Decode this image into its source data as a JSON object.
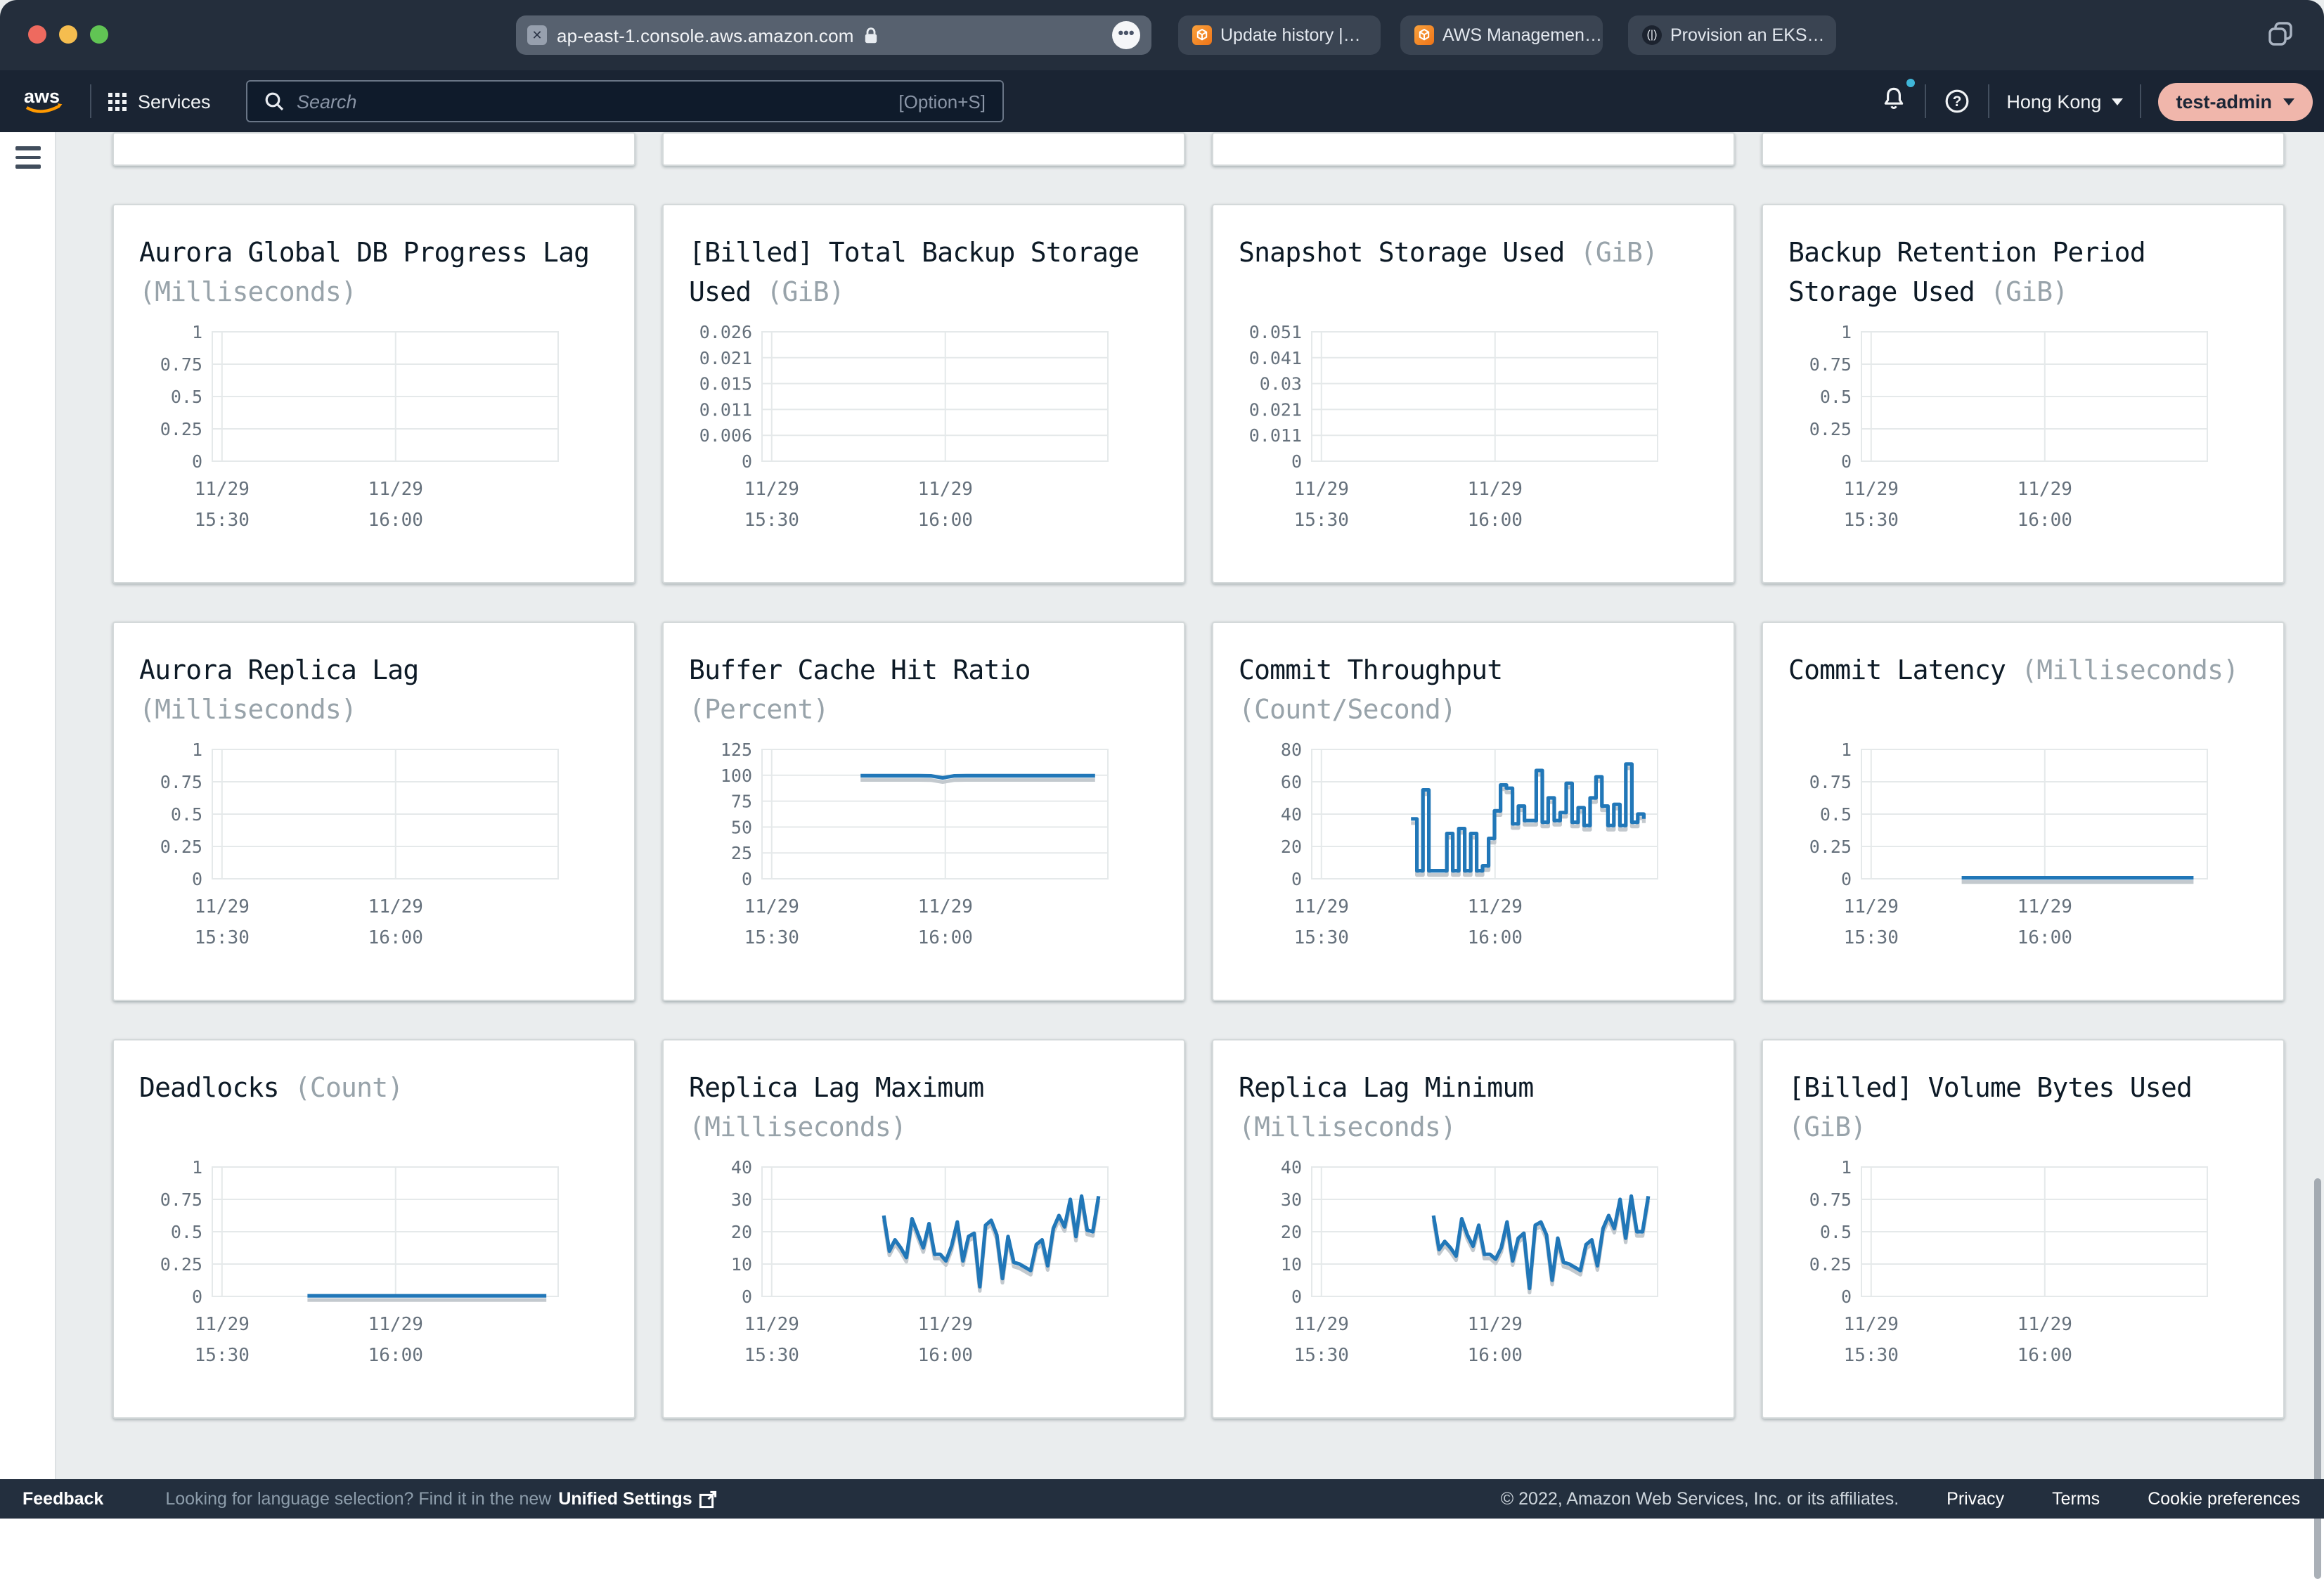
{
  "browser": {
    "url": "ap-east-1.console.aws.amazon.com",
    "tabs": [
      "Update history |…",
      "AWS Managemen…",
      "Provision an EKS…"
    ]
  },
  "navbar": {
    "logo": "aws",
    "services": "Services",
    "search_placeholder": "Search",
    "search_shortcut": "[Option+S]",
    "region": "Hong Kong",
    "account": "test-admin"
  },
  "footer": {
    "feedback": "Feedback",
    "language_prompt": "Looking for language selection? Find it in the new",
    "unified_settings": "Unified Settings",
    "copyright": "© 2022, Amazon Web Services, Inc. or its affiliates.",
    "links": [
      "Privacy",
      "Terms",
      "Cookie preferences"
    ]
  },
  "chart_layout": {
    "grid_x": [
      0.028,
      0.53
    ],
    "line_color": "#2177b8",
    "grid_color": "#e5e9ea"
  },
  "charts": [
    {
      "type": "line",
      "title": "Aurora Global DB Progress Lag",
      "unit": "(Milliseconds)",
      "y_ticks": [
        "1",
        "0.75",
        "0.5",
        "0.25",
        "0"
      ],
      "ylim": 1,
      "x_ticks": [
        [
          "11/29",
          "15:30"
        ],
        [
          "11/29",
          "16:00"
        ]
      ],
      "series": null
    },
    {
      "type": "line",
      "title": "[Billed] Total Backup Storage Used",
      "unit": "(GiB)",
      "y_ticks": [
        "0.026",
        "0.021",
        "0.015",
        "0.011",
        "0.006",
        "0"
      ],
      "ylim": 0.026,
      "x_ticks": [
        [
          "11/29",
          "15:30"
        ],
        [
          "11/29",
          "16:00"
        ]
      ],
      "series": null
    },
    {
      "type": "line",
      "title": "Snapshot Storage Used",
      "unit": "(GiB)",
      "y_ticks": [
        "0.051",
        "0.041",
        "0.03",
        "0.021",
        "0.011",
        "0"
      ],
      "ylim": 0.051,
      "x_ticks": [
        [
          "11/29",
          "15:30"
        ],
        [
          "11/29",
          "16:00"
        ]
      ],
      "series": null
    },
    {
      "type": "line",
      "title": "Backup Retention Period Storage Used",
      "unit": "(GiB)",
      "y_ticks": [
        "1",
        "0.75",
        "0.5",
        "0.25",
        "0"
      ],
      "ylim": 1,
      "x_ticks": [
        [
          "11/29",
          "15:30"
        ],
        [
          "11/29",
          "16:00"
        ]
      ],
      "series": null
    },
    {
      "type": "line",
      "title": "Aurora Replica Lag",
      "unit": "(Milliseconds)",
      "y_ticks": [
        "1",
        "0.75",
        "0.5",
        "0.25",
        "0"
      ],
      "ylim": 1,
      "x_ticks": [
        [
          "11/29",
          "15:30"
        ],
        [
          "11/29",
          "16:00"
        ]
      ],
      "series": null
    },
    {
      "type": "line",
      "title": "Buffer Cache Hit Ratio",
      "unit": "(Percent)",
      "y_ticks": [
        "125",
        "100",
        "75",
        "50",
        "25",
        "0"
      ],
      "ylim": 125,
      "x_ticks": [
        [
          "11/29",
          "15:30"
        ],
        [
          "11/29",
          "16:00"
        ]
      ],
      "series": {
        "type": "line",
        "x0": 0.285,
        "x1": 0.963,
        "values": [
          99.6,
          99.6,
          99.6,
          99.6,
          99.6,
          99.6,
          99.5,
          97.6,
          99.4,
          99.6,
          99.6,
          99.6,
          99.6,
          99.6,
          99.6,
          99.6,
          99.6,
          99.6,
          99.6,
          99.6,
          99.6
        ]
      }
    },
    {
      "type": "step",
      "title": "Commit Throughput",
      "unit": "(Count/Second)",
      "y_ticks": [
        "80",
        "60",
        "40",
        "20",
        "0"
      ],
      "ylim": 80,
      "x_ticks": [
        [
          "11/29",
          "15:30"
        ],
        [
          "11/29",
          "16:00"
        ]
      ],
      "series": {
        "type": "step",
        "x0": 0.287,
        "x1": 0.96,
        "values": [
          37,
          5,
          55,
          5,
          5,
          5,
          28,
          5,
          31,
          5,
          28,
          5,
          8,
          25,
          42,
          58,
          56,
          34,
          45,
          36,
          36,
          67,
          35,
          50,
          36,
          41,
          59,
          35,
          44,
          33,
          50,
          63,
          45,
          33,
          46,
          33,
          71,
          35,
          40,
          37
        ]
      }
    },
    {
      "type": "line",
      "title": "Commit Latency",
      "unit": "(Milliseconds)",
      "y_ticks": [
        "1",
        "0.75",
        "0.5",
        "0.25",
        "0"
      ],
      "ylim": 1,
      "x_ticks": [
        [
          "11/29",
          "15:30"
        ],
        [
          "11/29",
          "16:00"
        ]
      ],
      "series": {
        "type": "line",
        "x0": 0.29,
        "x1": 0.96,
        "values": [
          0.008,
          0.008,
          0.008,
          0.008,
          0.008,
          0.008,
          0.008,
          0.008,
          0.008,
          0.008,
          0.008,
          0.008
        ]
      }
    },
    {
      "type": "line",
      "title": "Deadlocks",
      "unit": "(Count)",
      "y_ticks": [
        "1",
        "0.75",
        "0.5",
        "0.25",
        "0"
      ],
      "ylim": 1,
      "x_ticks": [
        [
          "11/29",
          "15:30"
        ],
        [
          "11/29",
          "16:00"
        ]
      ],
      "series": {
        "type": "line",
        "x0": 0.275,
        "x1": 0.966,
        "values": [
          0.004,
          0.004,
          0.004,
          0.004,
          0.004,
          0.004,
          0.004,
          0.004,
          0.004,
          0.004,
          0.004,
          0.004
        ]
      }
    },
    {
      "type": "line",
      "title": "Replica Lag Maximum",
      "unit": "(Milliseconds)",
      "y_ticks": [
        "40",
        "30",
        "20",
        "10",
        "0"
      ],
      "ylim": 40,
      "x_ticks": [
        [
          "11/29",
          "15:30"
        ],
        [
          "11/29",
          "16:00"
        ]
      ],
      "series": {
        "type": "line",
        "x0": 0.352,
        "x1": 0.973,
        "values": [
          25,
          14,
          17.5,
          15,
          12,
          24,
          19.5,
          15,
          22.5,
          13,
          13,
          11,
          15.5,
          23,
          11,
          18.5,
          19.5,
          3,
          22,
          23.5,
          19,
          5.5,
          18.5,
          10.5,
          10,
          9,
          8,
          16,
          17.5,
          9.5,
          21,
          25,
          21.5,
          30,
          18.5,
          31,
          20.5,
          20,
          31
        ]
      }
    },
    {
      "type": "line",
      "title": "Replica Lag Minimum",
      "unit": "(Milliseconds)",
      "y_ticks": [
        "40",
        "30",
        "20",
        "10",
        "0"
      ],
      "ylim": 40,
      "x_ticks": [
        [
          "11/29",
          "15:30"
        ],
        [
          "11/29",
          "16:00"
        ]
      ],
      "series": {
        "type": "line",
        "x0": 0.352,
        "x1": 0.973,
        "values": [
          25,
          14.5,
          17,
          15,
          12.5,
          24,
          19,
          15.5,
          22,
          13,
          13,
          11.5,
          15,
          23,
          11,
          18,
          19.5,
          2.5,
          22,
          23,
          19,
          5,
          18,
          10.5,
          10,
          9,
          8,
          16,
          17.5,
          9.5,
          21,
          25,
          21,
          30,
          18,
          31,
          20,
          20,
          31
        ]
      }
    },
    {
      "type": "line",
      "title": "[Billed] Volume Bytes Used",
      "unit": "(GiB)",
      "y_ticks": [
        "1",
        "0.75",
        "0.5",
        "0.25",
        "0"
      ],
      "ylim": 1,
      "x_ticks": [
        [
          "11/29",
          "15:30"
        ],
        [
          "11/29",
          "16:00"
        ]
      ],
      "series": null
    }
  ]
}
